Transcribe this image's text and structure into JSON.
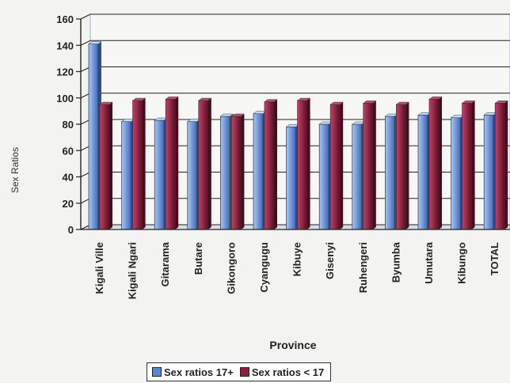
{
  "chart_data": {
    "type": "bar",
    "title": "",
    "xlabel": "Province",
    "ylabel": "Sex Ratios",
    "ylim": [
      0,
      160
    ],
    "yticks": [
      0,
      20,
      40,
      60,
      80,
      100,
      120,
      140,
      160
    ],
    "grid": true,
    "legend_position": "bottom",
    "categories": [
      "Kigali Ville",
      "Kigali Ngari",
      "Gitarama",
      "Butare",
      "Gikongoro",
      "Cyangugu",
      "Kibuye",
      "Gisenyi",
      "Ruhengeri",
      "Byumba",
      "Umutara",
      "Kibungo",
      "TOTAL"
    ],
    "series": [
      {
        "name": "Sex ratios 17+",
        "color": "#5a86d6",
        "values": [
          141,
          82,
          83,
          82,
          86,
          88,
          78,
          80,
          80,
          86,
          87,
          85,
          87
        ]
      },
      {
        "name": "Sex ratios < 17",
        "color": "#8c1f3c",
        "values": [
          95,
          98,
          99,
          98,
          86,
          97,
          98,
          95,
          96,
          95,
          99,
          96,
          96
        ]
      }
    ]
  }
}
